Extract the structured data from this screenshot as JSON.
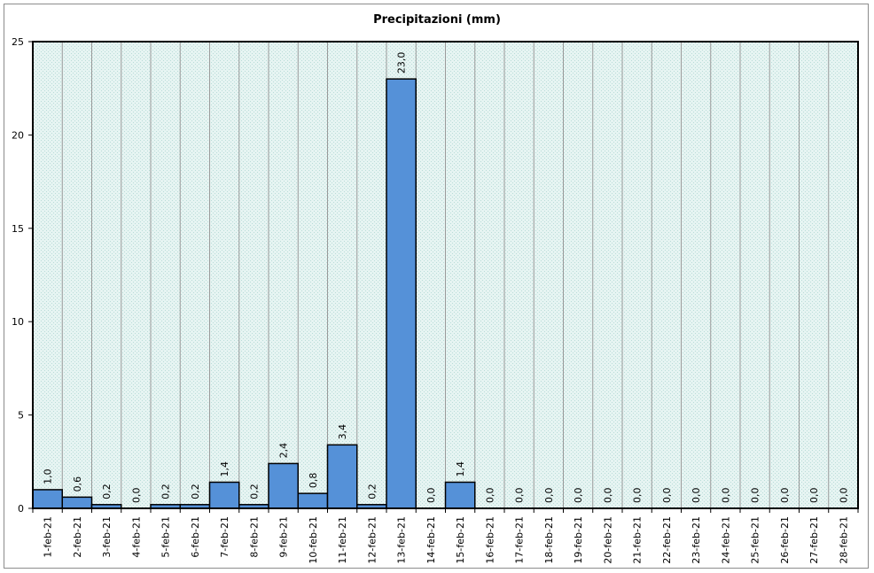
{
  "chart_data": {
    "type": "bar",
    "title": "Precipitazioni (mm)",
    "xlabel": "",
    "ylabel": "",
    "ylim": [
      0,
      25
    ],
    "yticks": [
      "0",
      "5",
      "10",
      "15",
      "20",
      "25"
    ],
    "grid": true,
    "legend": "none",
    "categories": [
      "1-feb-21",
      "2-feb-21",
      "3-feb-21",
      "4-feb-21",
      "5-feb-21",
      "6-feb-21",
      "7-feb-21",
      "8-feb-21",
      "9-feb-21",
      "10-feb-21",
      "11-feb-21",
      "12-feb-21",
      "13-feb-21",
      "14-feb-21",
      "15-feb-21",
      "16-feb-21",
      "17-feb-21",
      "18-feb-21",
      "19-feb-21",
      "20-feb-21",
      "21-feb-21",
      "22-feb-21",
      "23-feb-21",
      "24-feb-21",
      "25-feb-21",
      "26-feb-21",
      "27-feb-21",
      "28-feb-21"
    ],
    "values": [
      1.0,
      0.6,
      0.2,
      0.0,
      0.2,
      0.2,
      1.4,
      0.2,
      2.4,
      0.8,
      3.4,
      0.2,
      23.0,
      0.0,
      1.4,
      0.0,
      0.0,
      0.0,
      0.0,
      0.0,
      0.0,
      0.0,
      0.0,
      0.0,
      0.0,
      0.0,
      0.0,
      0.0
    ],
    "data_labels": [
      "1,0",
      "0,6",
      "0,2",
      "0,0",
      "0,2",
      "0,2",
      "1,4",
      "0,2",
      "2,4",
      "0,8",
      "3,4",
      "0,2",
      "23,0",
      "0,0",
      "1,4",
      "0,0",
      "0,0",
      "0,0",
      "0,0",
      "0,0",
      "0,0",
      "0,0",
      "0,0",
      "0,0",
      "0,0",
      "0,0",
      "0,0",
      "0,0"
    ],
    "colors": {
      "bar": "#5591d8",
      "bar_stroke": "#000000",
      "plot_background": "#dff0ee",
      "gridline": "#9a9a9a"
    }
  }
}
